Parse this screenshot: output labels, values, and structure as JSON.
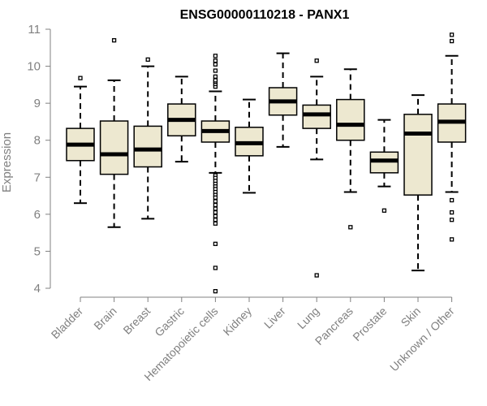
{
  "chart_data": {
    "type": "boxplot",
    "title": "ENSG00000110218 - PANX1",
    "xlabel": "",
    "ylabel": "Expression",
    "ylim": [
      3.75,
      11.15
    ],
    "yticks": [
      4,
      5,
      6,
      7,
      8,
      9,
      10,
      11
    ],
    "grid": false,
    "box_fill": "#ede8d0",
    "median_color": "#000000",
    "categories": [
      "Bladder",
      "Brain",
      "Breast",
      "Gastric",
      "Hematopoietic cells",
      "Kidney",
      "Liver",
      "Lung",
      "Pancreas",
      "Prostate",
      "Skin",
      "Unknown / Other"
    ],
    "boxes": [
      {
        "name": "Bladder",
        "whisker_low": 6.3,
        "q1": 7.45,
        "median": 7.88,
        "q3": 8.32,
        "whisker_high": 9.45,
        "outliers": [
          9.68
        ]
      },
      {
        "name": "Brain",
        "whisker_low": 5.65,
        "q1": 7.08,
        "median": 7.62,
        "q3": 8.52,
        "whisker_high": 9.62,
        "outliers": [
          10.7
        ]
      },
      {
        "name": "Breast",
        "whisker_low": 5.88,
        "q1": 7.28,
        "median": 7.75,
        "q3": 8.38,
        "whisker_high": 10.0,
        "outliers": [
          10.18
        ]
      },
      {
        "name": "Gastric",
        "whisker_low": 7.42,
        "q1": 8.12,
        "median": 8.55,
        "q3": 8.98,
        "whisker_high": 9.72,
        "outliers": []
      },
      {
        "name": "Hematopoietic cells",
        "whisker_low": 7.12,
        "q1": 7.95,
        "median": 8.25,
        "q3": 8.52,
        "whisker_high": 9.32,
        "outliers": [
          9.45,
          9.52,
          9.58,
          9.62,
          9.72,
          9.88,
          10.05,
          10.15,
          10.28,
          7.05,
          6.98,
          6.9,
          6.82,
          6.75,
          6.68,
          6.6,
          6.52,
          6.45,
          6.35,
          6.25,
          6.15,
          6.05,
          5.95,
          5.85,
          5.75,
          5.2,
          4.55,
          3.92
        ]
      },
      {
        "name": "Kidney",
        "whisker_low": 6.58,
        "q1": 7.58,
        "median": 7.92,
        "q3": 8.35,
        "whisker_high": 9.1,
        "outliers": []
      },
      {
        "name": "Liver",
        "whisker_low": 7.82,
        "q1": 8.68,
        "median": 9.05,
        "q3": 9.42,
        "whisker_high": 10.35,
        "outliers": []
      },
      {
        "name": "Lung",
        "whisker_low": 7.48,
        "q1": 8.32,
        "median": 8.7,
        "q3": 8.95,
        "whisker_high": 9.72,
        "outliers": [
          10.15,
          4.35
        ]
      },
      {
        "name": "Pancreas",
        "whisker_low": 6.6,
        "q1": 8.0,
        "median": 8.42,
        "q3": 9.1,
        "whisker_high": 9.92,
        "outliers": [
          5.65
        ]
      },
      {
        "name": "Prostate",
        "whisker_low": 6.75,
        "q1": 7.12,
        "median": 7.45,
        "q3": 7.68,
        "whisker_high": 8.55,
        "outliers": [
          6.1
        ]
      },
      {
        "name": "Skin",
        "whisker_low": 4.48,
        "q1": 6.52,
        "median": 8.18,
        "q3": 8.7,
        "whisker_high": 9.22,
        "outliers": []
      },
      {
        "name": "Unknown / Other",
        "whisker_low": 6.6,
        "q1": 7.95,
        "median": 8.5,
        "q3": 8.98,
        "whisker_high": 10.28,
        "outliers": [
          10.68,
          10.85,
          6.38,
          6.05,
          5.85,
          5.32
        ]
      }
    ]
  }
}
